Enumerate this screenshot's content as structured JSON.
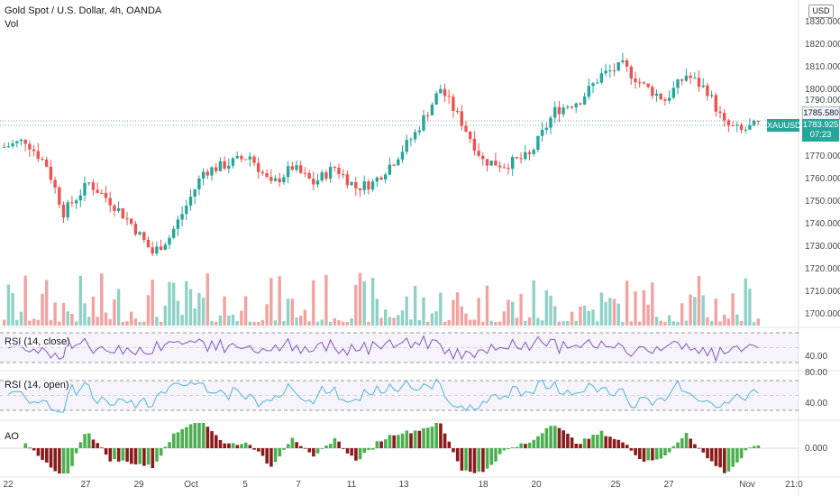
{
  "header": {
    "title": "Gold Spot / U.S. Dollar, 4h, OANDA",
    "volume_label": "Vol"
  },
  "currency_button": "USD",
  "price_axis": [
    "1830.000",
    "1820.000",
    "1810.000",
    "1800.000",
    "1790.000",
    "1770.000",
    "1760.000",
    "1750.000",
    "1740.000",
    "1730.000",
    "1720.000",
    "1710.000",
    "1700.000"
  ],
  "price_tags": {
    "gray_price": "1785.580",
    "symbol": "XAUUSD",
    "last_price": "1783.925",
    "countdown": "07:23"
  },
  "panes": {
    "rsi_close_label": "RSI (14, close)",
    "rsi_close_axis": "40.00",
    "rsi_open_label": "RSI (14, open)",
    "rsi_open_axis_top": "80.00",
    "rsi_open_axis": "40.00",
    "ao_label": "AO",
    "ao_axis": "0.000"
  },
  "time_axis": [
    "22",
    "27",
    "29",
    "Oct",
    "5",
    "7",
    "11",
    "13",
    "18",
    "20",
    "25",
    "27",
    "Nov",
    "21:0"
  ],
  "colors": {
    "up": "#26a69a",
    "down": "#ef5350",
    "vol_up": "#8fd1c6",
    "vol_down": "#f2a3a1",
    "rsi_close": "#7e57c2",
    "rsi_open": "#4fb6d6",
    "ao_up": "#4caf50",
    "ao_down": "#8b1a1a"
  }
}
